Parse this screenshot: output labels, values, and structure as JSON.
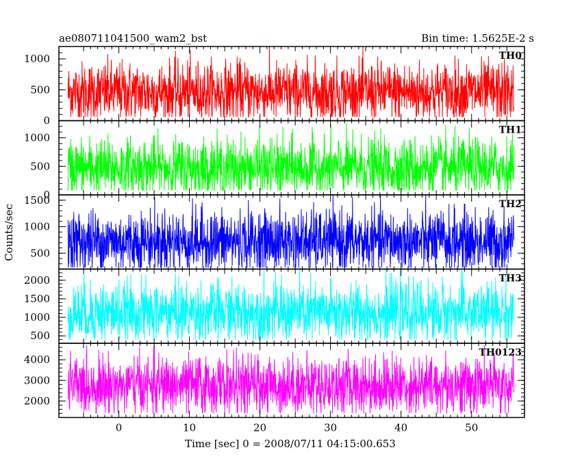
{
  "header": {
    "title": "ae080711041500_wam2_bst",
    "bin_time": "Bin time: 1.5625E-2 s"
  },
  "chart_data": {
    "type": "line",
    "title": "ae080711041500_wam2_bst",
    "subtitle": "Bin time: 1.5625E-2 s",
    "xlabel": "Time [sec] 0 = 2008/07/11 04:15:00.653",
    "ylabel": "Counts/sec",
    "xlim": [
      -8.5,
      57.5
    ],
    "x_ticks": [
      0,
      10,
      20,
      30,
      40,
      50
    ],
    "x_tick_labels": [
      "0",
      "10",
      "20",
      "30",
      "40",
      "50"
    ],
    "x_data_range": [
      -7.2,
      56.0
    ],
    "grid": false,
    "panels": [
      {
        "name": "TH0",
        "color": "#ff0000",
        "ylim": [
          0,
          1200
        ],
        "y_ticks": [
          0,
          500,
          1000
        ],
        "y_tick_labels": [
          "0",
          "500",
          "1000"
        ],
        "mean": 460,
        "min": 60,
        "max": 1200
      },
      {
        "name": "TH1",
        "color": "#00ff00",
        "ylim": [
          0,
          1300
        ],
        "y_ticks": [
          0,
          500,
          1000
        ],
        "y_tick_labels": [
          "0",
          "500",
          "1000"
        ],
        "mean": 470,
        "min": 80,
        "max": 1300
      },
      {
        "name": "TH2",
        "color": "#0000ff",
        "ylim": [
          200,
          1600
        ],
        "y_ticks": [
          500,
          1000,
          1500
        ],
        "y_tick_labels": [
          "500",
          "1000",
          "1500"
        ],
        "mean": 720,
        "min": 230,
        "max": 1600
      },
      {
        "name": "TH3",
        "color": "#00ffff",
        "ylim": [
          300,
          2300
        ],
        "y_ticks": [
          500,
          1000,
          1500,
          2000
        ],
        "y_tick_labels": [
          "500",
          "1000",
          "1500",
          "2000"
        ],
        "mean": 1130,
        "min": 400,
        "max": 2300
      },
      {
        "name": "TH0123",
        "color": "#ff00ff",
        "ylim": [
          1200,
          4800
        ],
        "y_ticks": [
          2000,
          3000,
          4000
        ],
        "y_tick_labels": [
          "2000",
          "3000",
          "4000"
        ],
        "mean": 2750,
        "min": 1400,
        "max": 4700
      }
    ]
  }
}
